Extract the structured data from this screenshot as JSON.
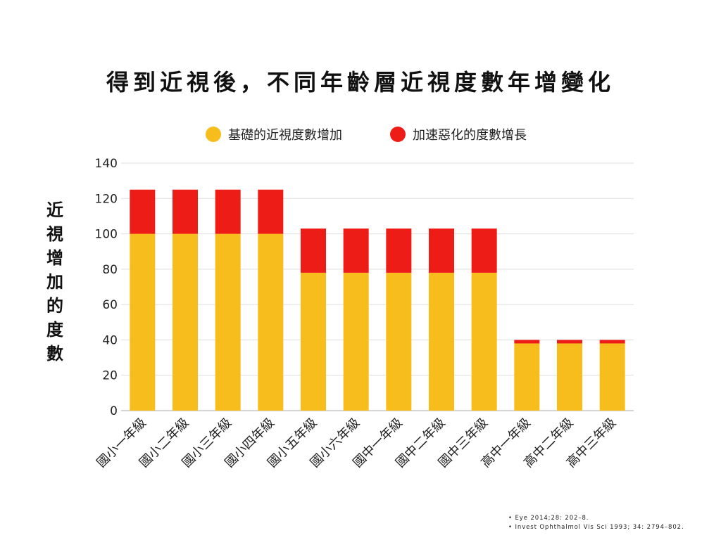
{
  "title": "得到近視後，不同年齡層近視度數年增變化",
  "legend": {
    "base_label": "基礎的近視度數增加",
    "extra_label": "加速惡化的度數增長"
  },
  "ylabel_chars": [
    "近",
    "視",
    "增",
    "加",
    "的",
    "度",
    "數"
  ],
  "references": [
    "• Eye 2014;28: 202–8.",
    "• Invest Ophthalmol Vis Sci 1993; 34: 2794–802."
  ],
  "colors": {
    "base": "#F7BD1D",
    "extra": "#EE1C16",
    "grid": "#DDDDDD",
    "axis": "#AAAAAA"
  },
  "chart_data": {
    "type": "bar",
    "stacked": true,
    "categories": [
      "國小一年級",
      "國小二年級",
      "國小三年級",
      "國小四年級",
      "國小五年級",
      "國小六年級",
      "國中一年級",
      "國中二年級",
      "國中三年級",
      "高中一年級",
      "高中二年級",
      "高中三年級"
    ],
    "series": [
      {
        "name": "基礎的近視度數增加",
        "values": [
          100,
          100,
          100,
          100,
          78,
          78,
          78,
          78,
          78,
          38,
          38,
          38
        ]
      },
      {
        "name": "加速惡化的度數增長",
        "values": [
          25,
          25,
          25,
          25,
          25,
          25,
          25,
          25,
          25,
          2,
          2,
          2
        ]
      }
    ],
    "ylabel": "近視增加的度數",
    "ylim": [
      0,
      140
    ],
    "yticks": [
      0,
      20,
      40,
      60,
      80,
      100,
      120,
      140
    ],
    "grid": true,
    "legend_position": "top"
  }
}
